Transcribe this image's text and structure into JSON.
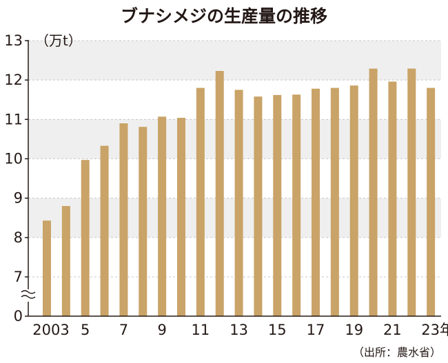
{
  "title": "ブナシメジの生産量の推移",
  "source": "（出所：農水省）",
  "colors": {
    "bar": "#C9A367",
    "band": "#EFEFEF",
    "grid": "#C8C8C8",
    "axis": "#231815",
    "text": "#231815"
  },
  "chart_data": {
    "type": "bar",
    "title": "ブナシメジの生産量の推移",
    "xlabel": "",
    "ylabel": "",
    "y_unit_label": "（万t）",
    "ylim": [
      0,
      13
    ],
    "y_axis_break": true,
    "y_ticks": [
      13,
      12,
      11,
      10,
      9,
      8,
      7,
      0
    ],
    "grid": true,
    "categories": [
      2003,
      2004,
      2005,
      2006,
      2007,
      2008,
      2009,
      2010,
      2011,
      2012,
      2013,
      2014,
      2015,
      2016,
      2017,
      2018,
      2019,
      2020,
      2021,
      2022,
      2023
    ],
    "x_tick_labels": [
      {
        "category": 2003,
        "label": "2003"
      },
      {
        "category": 2005,
        "label": "5"
      },
      {
        "category": 2007,
        "label": "7"
      },
      {
        "category": 2009,
        "label": "9"
      },
      {
        "category": 2011,
        "label": "11"
      },
      {
        "category": 2013,
        "label": "13"
      },
      {
        "category": 2015,
        "label": "15"
      },
      {
        "category": 2017,
        "label": "17"
      },
      {
        "category": 2019,
        "label": "19"
      },
      {
        "category": 2021,
        "label": "21"
      },
      {
        "category": 2023,
        "label": "23年"
      }
    ],
    "values": [
      8.43,
      8.8,
      9.97,
      10.33,
      10.9,
      10.81,
      11.07,
      11.04,
      11.8,
      12.23,
      11.75,
      11.58,
      11.62,
      11.63,
      11.78,
      11.8,
      11.86,
      12.29,
      11.96,
      12.29,
      11.8
    ]
  }
}
